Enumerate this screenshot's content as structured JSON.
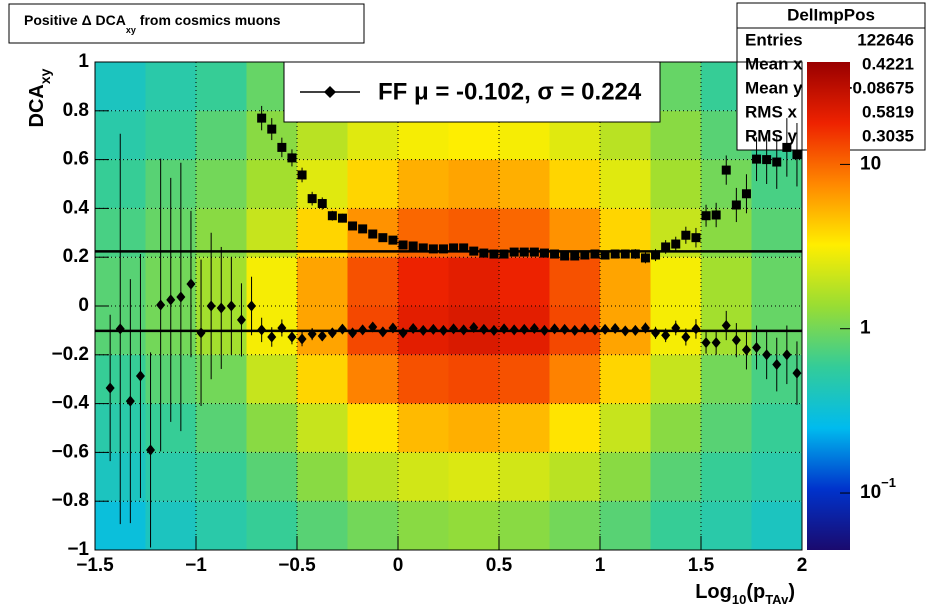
{
  "chart_data": {
    "type": "heatmap_profile",
    "title": {
      "before": "Positive Δ DCA",
      "sub": "xy",
      "after": " from cosmics muons"
    },
    "ylabel": {
      "main": "DCA",
      "sub": "xy"
    },
    "xlabel": {
      "pre": "Log",
      "sub1": "10",
      "mid": "(p",
      "sub2": "TAv",
      "post": ")"
    },
    "xlim": [
      -1.5,
      2
    ],
    "ylim": [
      -1,
      1
    ],
    "xticks": [
      {
        "value": -1.5,
        "label": "−1.5"
      },
      {
        "value": -1,
        "label": "−1"
      },
      {
        "value": -0.5,
        "label": "−0.5"
      },
      0,
      0.5,
      1,
      1.5,
      2
    ],
    "yticks": [
      {
        "value": -1,
        "label": "−1"
      },
      {
        "value": -0.8,
        "label": "−0.8"
      },
      {
        "value": -0.6,
        "label": "−0.6"
      },
      {
        "value": -0.4,
        "label": "−0.4"
      },
      {
        "value": -0.2,
        "label": "−0.2"
      },
      0,
      0.2,
      0.4,
      0.6,
      0.8,
      1
    ],
    "grid": true,
    "zlog": true,
    "zlim": [
      0.045,
      42
    ],
    "zticks": [
      {
        "value": 0.1,
        "label": "10",
        "exponent": "−1"
      },
      1,
      10
    ],
    "palette": [
      "#1a0a6e",
      "#0033cc",
      "#00bbee",
      "#33cc99",
      "#99dd33",
      "#ffee00",
      "#ff8800",
      "#ee2200",
      "#990000"
    ],
    "xbins": [
      -1.5,
      -1.25,
      -1,
      -0.75,
      -0.5,
      -0.25,
      0,
      0.25,
      0.5,
      0.75,
      1,
      1.25,
      1.5,
      1.75,
      2
    ],
    "ybins": [
      -1,
      -0.8,
      -0.6,
      -0.4,
      -0.2,
      0,
      0.2,
      0.4,
      0.6,
      0.8,
      1
    ],
    "z": [
      [
        0.3,
        0.4,
        0.5,
        0.6,
        0.8,
        1,
        1.2,
        1.3,
        1.2,
        1,
        0.8,
        0.6,
        0.5,
        0.4
      ],
      [
        0.4,
        0.5,
        0.6,
        0.8,
        1.2,
        1.8,
        2.2,
        2.4,
        2.2,
        1.8,
        1.2,
        0.8,
        0.6,
        0.5
      ],
      [
        0.5,
        0.6,
        0.8,
        1.2,
        2,
        3.5,
        5,
        5.5,
        5,
        3.5,
        2,
        1.2,
        0.8,
        0.6
      ],
      [
        0.6,
        0.8,
        1,
        2,
        4,
        8,
        12,
        13,
        12,
        8,
        4,
        2,
        1,
        0.7
      ],
      [
        0.8,
        1,
        1.5,
        3,
        6,
        13,
        20,
        22,
        20,
        13,
        6,
        3,
        1.5,
        0.9
      ],
      [
        0.8,
        1,
        1.5,
        3,
        6,
        12,
        18,
        20,
        18,
        12,
        6,
        3,
        1.5,
        0.9
      ],
      [
        0.7,
        0.9,
        1.2,
        2,
        4,
        7,
        10,
        11,
        10,
        7,
        4,
        2,
        1.2,
        0.8
      ],
      [
        0.6,
        0.8,
        1,
        1.5,
        2.5,
        4,
        5.5,
        6,
        5.5,
        4,
        2.5,
        1.5,
        1,
        0.7
      ],
      [
        0.5,
        0.6,
        0.8,
        1.2,
        1.8,
        2.5,
        3,
        3.2,
        3,
        2.5,
        1.8,
        1.2,
        0.8,
        0.6
      ],
      [
        0.4,
        0.5,
        0.6,
        0.9,
        1.2,
        1.6,
        1.8,
        1.9,
        1.8,
        1.6,
        1.2,
        0.9,
        0.6,
        0.5
      ]
    ],
    "x": [
      -1.425,
      -1.375,
      -1.325,
      -1.275,
      -1.225,
      -1.175,
      -1.125,
      -1.075,
      -1.025,
      -0.975,
      -0.925,
      -0.875,
      -0.825,
      -0.775,
      -0.725,
      -0.675,
      -0.625,
      -0.575,
      -0.525,
      -0.475,
      -0.425,
      -0.375,
      -0.325,
      -0.275,
      -0.225,
      -0.175,
      -0.125,
      -0.075,
      -0.025,
      0.025,
      0.075,
      0.125,
      0.175,
      0.225,
      0.275,
      0.325,
      0.375,
      0.425,
      0.475,
      0.525,
      0.575,
      0.625,
      0.675,
      0.725,
      0.775,
      0.825,
      0.875,
      0.925,
      0.975,
      1.025,
      1.075,
      1.125,
      1.175,
      1.225,
      1.275,
      1.325,
      1.375,
      1.425,
      1.475,
      1.525,
      1.575,
      1.625,
      1.675,
      1.725,
      1.775,
      1.825,
      1.875,
      1.925,
      1.975
    ],
    "series": [
      {
        "marker": "diamond",
        "color": "#000000",
        "values": [
          -0.336,
          -0.094,
          -0.39,
          -0.287,
          -0.59,
          0.004,
          0.025,
          0.037,
          0.09,
          -0.11,
          0,
          -0.008,
          0,
          -0.057,
          0,
          -0.098,
          -0.127,
          -0.09,
          -0.127,
          -0.135,
          -0.115,
          -0.123,
          -0.11,
          -0.095,
          -0.11,
          -0.098,
          -0.086,
          -0.106,
          -0.09,
          -0.11,
          -0.092,
          -0.1,
          -0.096,
          -0.1,
          -0.094,
          -0.098,
          -0.088,
          -0.096,
          -0.1,
          -0.094,
          -0.098,
          -0.096,
          -0.092,
          -0.1,
          -0.094,
          -0.096,
          -0.1,
          -0.094,
          -0.098,
          -0.096,
          -0.092,
          -0.102,
          -0.1,
          -0.09,
          -0.11,
          -0.12,
          -0.09,
          -0.127,
          -0.094,
          -0.15,
          -0.15,
          -0.08,
          -0.14,
          -0.18,
          -0.17,
          -0.2,
          -0.24,
          -0.2,
          -0.275
        ],
        "errors": [
          0.3,
          0.8,
          0.5,
          0.5,
          0.4,
          0.6,
          0.5,
          0.55,
          0.3,
          0.3,
          0.3,
          0.25,
          0.2,
          0.15,
          0.12,
          0.05,
          0.04,
          0.035,
          0.03,
          0.03,
          0.025,
          0.02,
          0.02,
          0.018,
          0.016,
          0.015,
          0.014,
          0.013,
          0.012,
          0.012,
          0.011,
          0.01,
          0.01,
          0.01,
          0.01,
          0.01,
          0.01,
          0.01,
          0.01,
          0.01,
          0.01,
          0.01,
          0.01,
          0.011,
          0.011,
          0.012,
          0.012,
          0.013,
          0.014,
          0.015,
          0.016,
          0.018,
          0.02,
          0.022,
          0.025,
          0.028,
          0.03,
          0.035,
          0.04,
          0.045,
          0.05,
          0.06,
          0.07,
          0.08,
          0.09,
          0.1,
          0.11,
          0.12,
          0.13
        ]
      },
      {
        "marker": "square",
        "color": "#000000",
        "values": [
          null,
          null,
          null,
          null,
          null,
          null,
          null,
          null,
          null,
          null,
          null,
          null,
          null,
          null,
          null,
          0.77,
          0.725,
          0.65,
          0.607,
          0.537,
          0.44,
          0.42,
          0.37,
          0.36,
          0.328,
          0.316,
          0.295,
          0.28,
          0.27,
          0.25,
          0.246,
          0.238,
          0.234,
          0.234,
          0.238,
          0.238,
          0.225,
          0.217,
          0.213,
          0.213,
          0.221,
          0.221,
          0.221,
          0.217,
          0.213,
          0.205,
          0.205,
          0.209,
          0.213,
          0.209,
          0.213,
          0.213,
          0.213,
          0.197,
          0.209,
          0.242,
          0.254,
          0.29,
          0.28,
          0.37,
          0.373,
          0.557,
          0.414,
          0.46,
          0.602,
          0.6,
          0.59,
          0.65,
          0.62
        ],
        "errors": [
          null,
          null,
          null,
          null,
          null,
          null,
          null,
          null,
          null,
          null,
          null,
          null,
          null,
          null,
          null,
          0.05,
          0.045,
          0.04,
          0.035,
          0.03,
          0.028,
          0.025,
          0.02,
          0.018,
          0.016,
          0.015,
          0.014,
          0.013,
          0.012,
          0.012,
          0.011,
          0.01,
          0.01,
          0.01,
          0.01,
          0.01,
          0.01,
          0.01,
          0.01,
          0.01,
          0.01,
          0.01,
          0.01,
          0.011,
          0.011,
          0.012,
          0.012,
          0.013,
          0.014,
          0.015,
          0.016,
          0.018,
          0.02,
          0.022,
          0.025,
          0.028,
          0.03,
          0.035,
          0.04,
          0.045,
          0.05,
          0.06,
          0.07,
          0.08,
          0.09,
          0.1,
          0.11,
          0.12,
          0.13
        ]
      }
    ],
    "reference_lines": [
      -0.102,
      0.224
    ],
    "legend": "FF μ = -0.102, σ =   0.224",
    "stats": {
      "title": "DelImpPos",
      "rows": [
        [
          "Entries",
          "122646"
        ],
        [
          "Mean x",
          "0.4221"
        ],
        [
          "Mean y",
          "−0.08675"
        ],
        [
          "RMS x",
          "0.5819"
        ],
        [
          "RMS y",
          "0.3035"
        ]
      ]
    }
  }
}
